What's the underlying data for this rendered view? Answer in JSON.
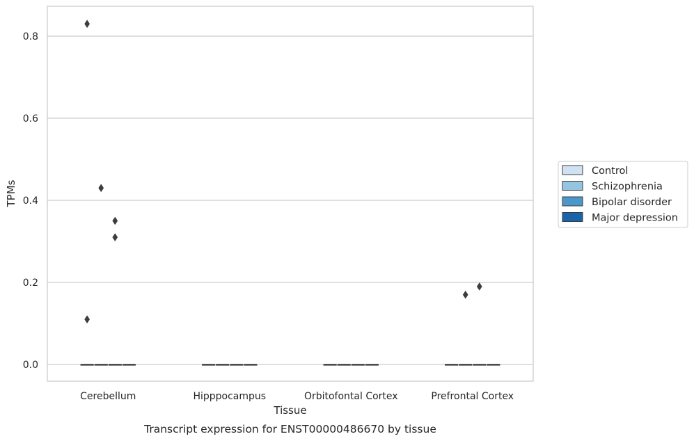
{
  "caption": "Transcript expression for ENST00000486670 by tissue",
  "chart_data": {
    "type": "box",
    "title": "",
    "xlabel": "Tissue",
    "ylabel": "TPMs",
    "categories": [
      "Cerebellum",
      "Hipppocampus",
      "Orbitofontal Cortex",
      "Prefrontal Cortex"
    ],
    "ylim": [
      -0.04,
      0.87
    ],
    "yticks": [
      0.0,
      0.2,
      0.4,
      0.6,
      0.8
    ],
    "ytick_labels": [
      "0.0",
      "0.2",
      "0.4",
      "0.6",
      "0.8"
    ],
    "grid": "horizontal",
    "legend_position": "right",
    "series": [
      {
        "name": "Control",
        "color": "#d0e1f2",
        "boxes": [
          {
            "category": "Cerebellum",
            "q1": 0,
            "median": 0,
            "q3": 0,
            "whisker_low": 0,
            "whisker_high": 0,
            "outliers": [
              0.83,
              0.11
            ]
          },
          {
            "category": "Hipppocampus",
            "q1": 0,
            "median": 0,
            "q3": 0,
            "whisker_low": 0,
            "whisker_high": 0,
            "outliers": []
          },
          {
            "category": "Orbitofontal Cortex",
            "q1": 0,
            "median": 0,
            "q3": 0,
            "whisker_low": 0,
            "whisker_high": 0,
            "outliers": []
          },
          {
            "category": "Prefrontal Cortex",
            "q1": 0,
            "median": 0,
            "q3": 0,
            "whisker_low": 0,
            "whisker_high": 0,
            "outliers": []
          }
        ]
      },
      {
        "name": "Schizophrenia",
        "color": "#94c4df",
        "boxes": [
          {
            "category": "Cerebellum",
            "q1": 0,
            "median": 0,
            "q3": 0,
            "whisker_low": 0,
            "whisker_high": 0,
            "outliers": [
              0.43
            ]
          },
          {
            "category": "Hipppocampus",
            "q1": 0,
            "median": 0,
            "q3": 0,
            "whisker_low": 0,
            "whisker_high": 0,
            "outliers": []
          },
          {
            "category": "Orbitofontal Cortex",
            "q1": 0,
            "median": 0,
            "q3": 0,
            "whisker_low": 0,
            "whisker_high": 0,
            "outliers": []
          },
          {
            "category": "Prefrontal Cortex",
            "q1": 0,
            "median": 0,
            "q3": 0,
            "whisker_low": 0,
            "whisker_high": 0,
            "outliers": [
              0.17
            ]
          }
        ]
      },
      {
        "name": "Bipolar disorder",
        "color": "#4a98c9",
        "boxes": [
          {
            "category": "Cerebellum",
            "q1": 0,
            "median": 0,
            "q3": 0,
            "whisker_low": 0,
            "whisker_high": 0,
            "outliers": [
              0.35,
              0.31
            ]
          },
          {
            "category": "Hipppocampus",
            "q1": 0,
            "median": 0,
            "q3": 0,
            "whisker_low": 0,
            "whisker_high": 0,
            "outliers": []
          },
          {
            "category": "Orbitofontal Cortex",
            "q1": 0,
            "median": 0,
            "q3": 0,
            "whisker_low": 0,
            "whisker_high": 0,
            "outliers": []
          },
          {
            "category": "Prefrontal Cortex",
            "q1": 0,
            "median": 0,
            "q3": 0,
            "whisker_low": 0,
            "whisker_high": 0,
            "outliers": [
              0.19
            ]
          }
        ]
      },
      {
        "name": "Major depression",
        "color": "#1764ab",
        "boxes": [
          {
            "category": "Cerebellum",
            "q1": 0,
            "median": 0,
            "q3": 0,
            "whisker_low": 0,
            "whisker_high": 0,
            "outliers": []
          },
          {
            "category": "Hipppocampus",
            "q1": 0,
            "median": 0,
            "q3": 0,
            "whisker_low": 0,
            "whisker_high": 0,
            "outliers": []
          },
          {
            "category": "Orbitofontal Cortex",
            "q1": 0,
            "median": 0,
            "q3": 0,
            "whisker_low": 0,
            "whisker_high": 0,
            "outliers": []
          },
          {
            "category": "Prefrontal Cortex",
            "q1": 0,
            "median": 0,
            "q3": 0,
            "whisker_low": 0,
            "whisker_high": 0,
            "outliers": []
          }
        ]
      }
    ]
  }
}
